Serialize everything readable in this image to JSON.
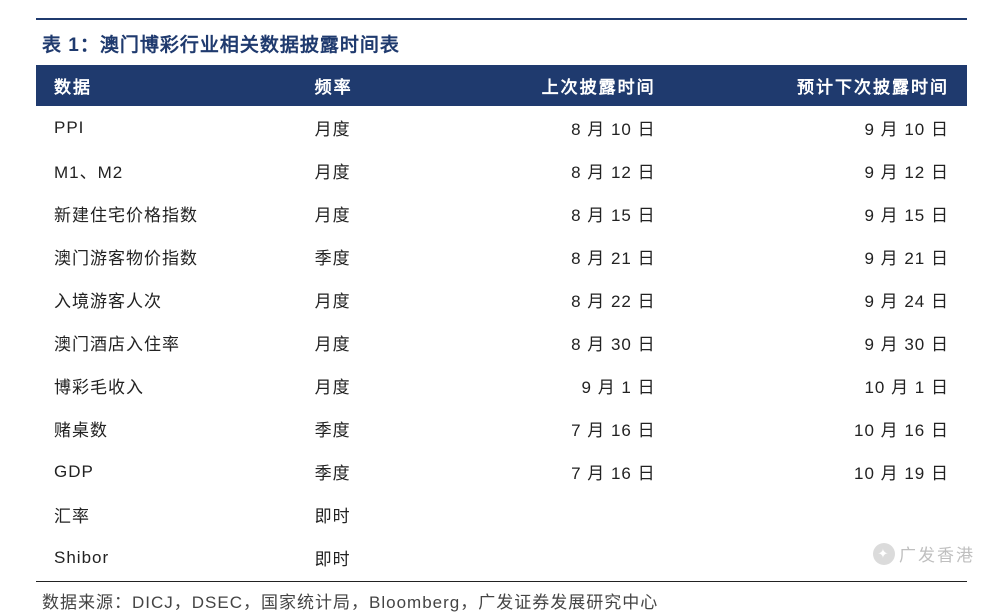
{
  "title": "表 1：澳门博彩行业相关数据披露时间表",
  "columns": [
    "数据",
    "频率",
    "上次披露时间",
    "预计下次披露时间"
  ],
  "rows": [
    {
      "data": "PPI",
      "freq": "月度",
      "last": "8 月 10 日",
      "next": "9 月 10 日"
    },
    {
      "data": "M1、M2",
      "freq": "月度",
      "last": "8 月 12 日",
      "next": "9 月 12 日"
    },
    {
      "data": "新建住宅价格指数",
      "freq": "月度",
      "last": "8 月 15 日",
      "next": "9 月 15 日"
    },
    {
      "data": "澳门游客物价指数",
      "freq": "季度",
      "last": "8 月 21 日",
      "next": "9 月 21 日"
    },
    {
      "data": "入境游客人次",
      "freq": "月度",
      "last": "8 月 22 日",
      "next": "9 月 24 日"
    },
    {
      "data": "澳门酒店入住率",
      "freq": "月度",
      "last": "8 月 30 日",
      "next": "9 月 30 日"
    },
    {
      "data": "博彩毛收入",
      "freq": "月度",
      "last": "9 月 1 日",
      "next": "10 月 1 日"
    },
    {
      "data": "赌桌数",
      "freq": "季度",
      "last": "7 月 16 日",
      "next": "10 月 16 日"
    },
    {
      "data": "GDP",
      "freq": "季度",
      "last": "7 月 16 日",
      "next": "10 月 19 日"
    },
    {
      "data": "汇率",
      "freq": "即时",
      "last": "",
      "next": ""
    },
    {
      "data": "Shibor",
      "freq": "即时",
      "last": "",
      "next": ""
    }
  ],
  "source": "数据来源：DICJ，DSEC，国家统计局，Bloomberg，广发证券发展研究中心",
  "watermark": "广发香港",
  "style": {
    "brand_color": "#1f3a6e",
    "text_color": "#222222",
    "background": "#ffffff",
    "title_fontsize": 19,
    "body_fontsize": 17,
    "col_widths_pct": [
      28,
      18,
      27,
      27
    ]
  }
}
